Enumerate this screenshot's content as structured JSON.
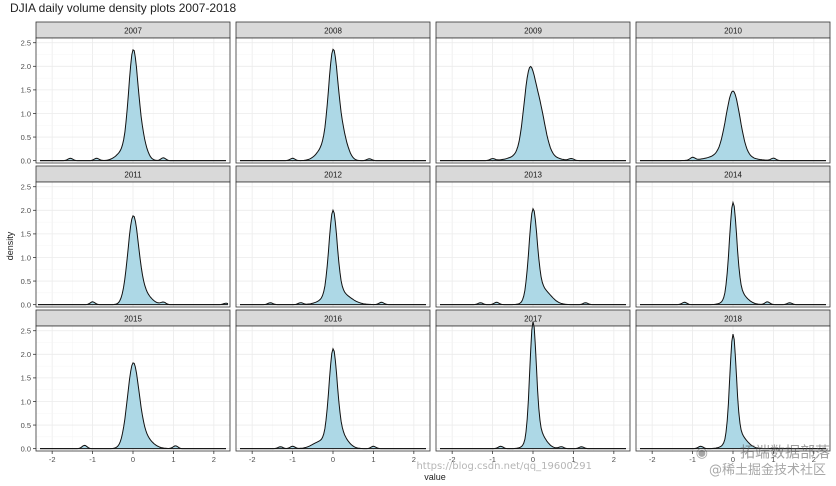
{
  "chart_data": {
    "type": "area",
    "title": "DJIA daily volume density plots 2007-2018",
    "xlabel": "value",
    "ylabel": "density",
    "xlim": [
      -2.4,
      2.4
    ],
    "ylim": [
      -0.05,
      2.6
    ],
    "x_ticks": [
      -2,
      -1,
      0,
      1,
      2
    ],
    "x_tick_labels": [
      "-2",
      "-1",
      "0",
      "1",
      "2"
    ],
    "y_ticks": [
      0.0,
      0.5,
      1.0,
      1.5,
      2.0,
      2.5
    ],
    "y_tick_labels": [
      "0.0",
      "0.5",
      "1.0",
      "1.5",
      "2.0",
      "2.5"
    ],
    "grid": true,
    "fill_color": "#add8e6",
    "line_color": "#111111",
    "panels": [
      {
        "label": "2007",
        "range": [
          -2.3,
          2.3
        ],
        "peaks": [
          [
            0.0,
            2.02,
            0.11
          ],
          [
            0.18,
            0.55,
            0.13
          ],
          [
            -0.2,
            0.22,
            0.18
          ]
        ],
        "bumps": [
          [
            -1.55,
            0.05
          ],
          [
            -0.9,
            0.05
          ],
          [
            0.75,
            0.06
          ]
        ]
      },
      {
        "label": "2008",
        "range": [
          -2.3,
          2.3
        ],
        "peaks": [
          [
            0.0,
            1.88,
            0.11
          ],
          [
            0.2,
            0.6,
            0.14
          ],
          [
            -0.15,
            0.35,
            0.2
          ]
        ],
        "bumps": [
          [
            -1.0,
            0.05
          ],
          [
            0.9,
            0.04
          ]
        ]
      },
      {
        "label": "2009",
        "range": [
          -2.3,
          2.3
        ],
        "peaks": [
          [
            -0.1,
            1.48,
            0.13
          ],
          [
            0.15,
            0.9,
            0.15
          ],
          [
            0.0,
            0.25,
            0.35
          ]
        ],
        "bumps": [
          [
            -1.0,
            0.04
          ],
          [
            0.95,
            0.04
          ]
        ]
      },
      {
        "label": "2010",
        "range": [
          -2.3,
          2.3
        ],
        "peaks": [
          [
            0.0,
            1.33,
            0.17
          ],
          [
            -0.1,
            0.15,
            0.4
          ]
        ],
        "bumps": [
          [
            -1.0,
            0.06
          ],
          [
            1.0,
            0.05
          ]
        ]
      },
      {
        "label": "2011",
        "range": [
          -2.35,
          2.35
        ],
        "peaks": [
          [
            0.0,
            1.7,
            0.13
          ],
          [
            0.2,
            0.3,
            0.2
          ]
        ],
        "bumps": [
          [
            -1.0,
            0.06
          ],
          [
            0.75,
            0.05
          ],
          [
            2.3,
            0.03
          ]
        ]
      },
      {
        "label": "2012",
        "range": [
          -2.3,
          2.3
        ],
        "peaks": [
          [
            0.0,
            1.72,
            0.1
          ],
          [
            0.1,
            0.3,
            0.28
          ]
        ],
        "bumps": [
          [
            -1.55,
            0.04
          ],
          [
            -0.8,
            0.04
          ],
          [
            1.2,
            0.05
          ]
        ]
      },
      {
        "label": "2013",
        "range": [
          -2.3,
          2.3
        ],
        "peaks": [
          [
            0.0,
            1.8,
            0.1
          ],
          [
            0.2,
            0.35,
            0.22
          ]
        ],
        "bumps": [
          [
            -1.3,
            0.04
          ],
          [
            -0.9,
            0.05
          ],
          [
            1.3,
            0.04
          ]
        ]
      },
      {
        "label": "2014",
        "range": [
          -2.3,
          2.3
        ],
        "peaks": [
          [
            0.0,
            1.9,
            0.09
          ],
          [
            0.1,
            0.3,
            0.2
          ]
        ],
        "bumps": [
          [
            -1.2,
            0.05
          ],
          [
            0.85,
            0.06
          ],
          [
            1.4,
            0.04
          ]
        ]
      },
      {
        "label": "2015",
        "range": [
          -2.3,
          2.3
        ],
        "peaks": [
          [
            0.0,
            1.62,
            0.14
          ],
          [
            0.2,
            0.3,
            0.22
          ]
        ],
        "bumps": [
          [
            -1.2,
            0.07
          ],
          [
            1.05,
            0.06
          ]
        ]
      },
      {
        "label": "2016",
        "range": [
          -2.3,
          2.3
        ],
        "peaks": [
          [
            0.0,
            1.82,
            0.1
          ],
          [
            0.15,
            0.35,
            0.18
          ],
          [
            -0.3,
            0.15,
            0.2
          ]
        ],
        "bumps": [
          [
            -1.3,
            0.04
          ],
          [
            -1.0,
            0.05
          ],
          [
            1.0,
            0.05
          ]
        ]
      },
      {
        "label": "2017",
        "range": [
          -2.3,
          2.3
        ],
        "peaks": [
          [
            0.0,
            2.35,
            0.08
          ],
          [
            0.1,
            0.4,
            0.18
          ]
        ],
        "bumps": [
          [
            -0.8,
            0.05
          ],
          [
            0.7,
            0.04
          ],
          [
            1.2,
            0.04
          ]
        ]
      },
      {
        "label": "2018",
        "range": [
          -2.3,
          2.3
        ],
        "peaks": [
          [
            0.0,
            2.12,
            0.08
          ],
          [
            0.1,
            0.35,
            0.2
          ]
        ],
        "bumps": [
          [
            -0.8,
            0.05
          ]
        ]
      }
    ]
  },
  "watermarks": {
    "url": "https://blog.csdn.net/qq_19600291",
    "brand": "拓端数据部落",
    "sub": "@稀土掘金技术社区",
    "icon": "wechat-icon"
  }
}
